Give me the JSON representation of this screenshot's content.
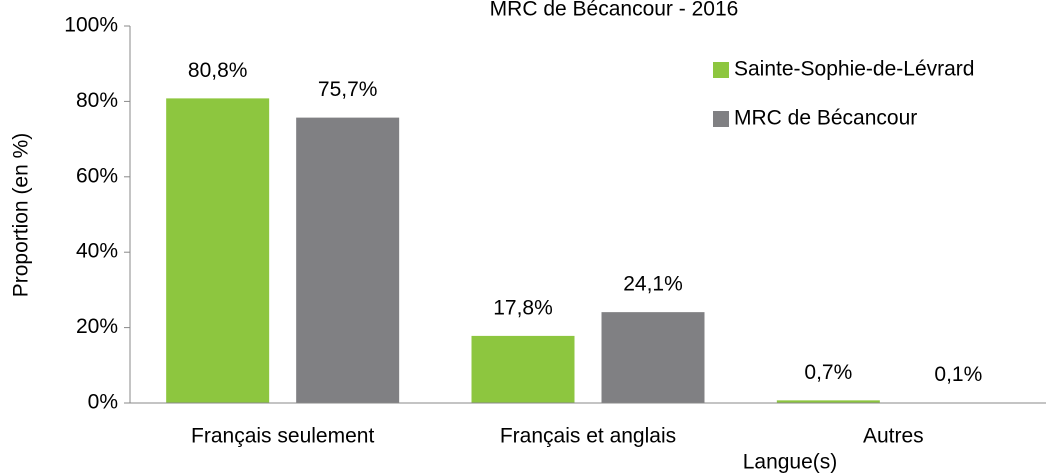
{
  "chart_data": {
    "type": "bar",
    "title": "MRC de Bécancour - 2016",
    "xlabel": "Langue(s)",
    "ylabel": "Proportion (en %)",
    "categories": [
      "Français seulement",
      "Français et anglais",
      "Autres"
    ],
    "series": [
      {
        "name": "Sainte-Sophie-de-Lévrard",
        "color": "#8dc63f",
        "values": [
          80.8,
          17.8,
          0.7
        ],
        "value_labels": [
          "80,8%",
          "17,8%",
          "0,7%"
        ]
      },
      {
        "name": "MRC de Bécancour",
        "color": "#808083",
        "values": [
          75.7,
          24.1,
          0.1
        ],
        "value_labels": [
          "75,7%",
          "24,1%",
          "0,1%"
        ]
      }
    ],
    "ylim": [
      0,
      100
    ],
    "yticks": [
      {
        "value": 0,
        "label": "0%"
      },
      {
        "value": 20,
        "label": "20%"
      },
      {
        "value": 40,
        "label": "40%"
      },
      {
        "value": 60,
        "label": "60%"
      },
      {
        "value": 80,
        "label": "80%"
      },
      {
        "value": 100,
        "label": "100%"
      }
    ],
    "grid": false,
    "legend": "upper right"
  }
}
